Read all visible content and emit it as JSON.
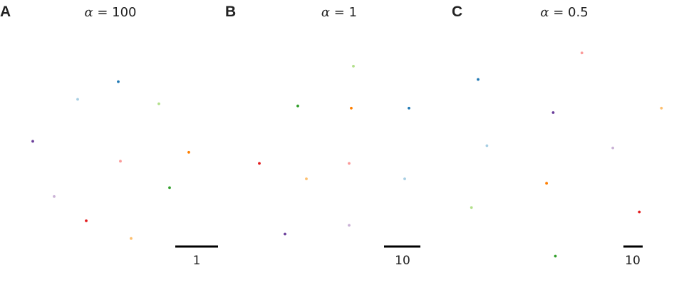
{
  "figure": {
    "background": "#ffffff"
  },
  "chart_data": [
    {
      "type": "scatter",
      "panel_letter": "A",
      "title_symbol": "α",
      "title_value": " = 100",
      "scale_bar_label": "1",
      "xlim": [
        0,
        100
      ],
      "ylim": [
        0,
        100
      ],
      "series": [
        {
          "color": "#a6cee3",
          "x": [
            33
          ],
          "y": [
            76
          ]
        },
        {
          "color": "#1f78b4",
          "x": [
            52
          ],
          "y": [
            84
          ]
        },
        {
          "color": "#b2df8a",
          "x": [
            71
          ],
          "y": [
            74
          ]
        },
        {
          "color": "#33a02c",
          "x": [
            76
          ],
          "y": [
            36
          ]
        },
        {
          "color": "#fb9a99",
          "x": [
            53
          ],
          "y": [
            48
          ]
        },
        {
          "color": "#e31a1c",
          "x": [
            37
          ],
          "y": [
            21
          ]
        },
        {
          "color": "#fdbf6f",
          "x": [
            58
          ],
          "y": [
            13
          ]
        },
        {
          "color": "#ff7f00",
          "x": [
            85
          ],
          "y": [
            52
          ]
        },
        {
          "color": "#cab2d6",
          "x": [
            22
          ],
          "y": [
            32
          ]
        },
        {
          "color": "#6a3d9a",
          "x": [
            12
          ],
          "y": [
            57
          ]
        }
      ]
    },
    {
      "type": "scatter",
      "panel_letter": "B",
      "title_symbol": "α",
      "title_value": " = 1",
      "scale_bar_label": "10",
      "xlim": [
        0,
        100
      ],
      "ylim": [
        0,
        100
      ],
      "series": [
        {
          "color": "#b2df8a",
          "x": [
            57
          ],
          "y": [
            91
          ]
        },
        {
          "color": "#33a02c",
          "x": [
            31
          ],
          "y": [
            73
          ]
        },
        {
          "color": "#ff7f00",
          "x": [
            56
          ],
          "y": [
            72
          ]
        },
        {
          "color": "#1f78b4",
          "x": [
            83
          ],
          "y": [
            72
          ]
        },
        {
          "color": "#e31a1c",
          "x": [
            13
          ],
          "y": [
            47
          ]
        },
        {
          "color": "#fdbf6f",
          "x": [
            35
          ],
          "y": [
            40
          ]
        },
        {
          "color": "#fb9a99",
          "x": [
            55
          ],
          "y": [
            47
          ]
        },
        {
          "color": "#a6cee3",
          "x": [
            81
          ],
          "y": [
            40
          ]
        },
        {
          "color": "#6a3d9a",
          "x": [
            25
          ],
          "y": [
            15
          ]
        },
        {
          "color": "#cab2d6",
          "x": [
            55
          ],
          "y": [
            19
          ]
        }
      ]
    },
    {
      "type": "scatter",
      "panel_letter": "C",
      "title_symbol": "α",
      "title_value": " = 0.5",
      "scale_bar_label": "10",
      "xlim": [
        0,
        100
      ],
      "ylim": [
        0,
        100
      ],
      "series": [
        {
          "color": "#1f78b4",
          "x": [
            10
          ],
          "y": [
            85
          ]
        },
        {
          "color": "#fb9a99",
          "x": [
            57
          ],
          "y": [
            97
          ]
        },
        {
          "color": "#6a3d9a",
          "x": [
            44
          ],
          "y": [
            70
          ]
        },
        {
          "color": "#fdbf6f",
          "x": [
            93
          ],
          "y": [
            72
          ]
        },
        {
          "color": "#a6cee3",
          "x": [
            14
          ],
          "y": [
            55
          ]
        },
        {
          "color": "#cab2d6",
          "x": [
            71
          ],
          "y": [
            54
          ]
        },
        {
          "color": "#ff7f00",
          "x": [
            41
          ],
          "y": [
            38
          ]
        },
        {
          "color": "#e31a1c",
          "x": [
            83
          ],
          "y": [
            25
          ]
        },
        {
          "color": "#b2df8a",
          "x": [
            7
          ],
          "y": [
            27
          ]
        },
        {
          "color": "#33a02c",
          "x": [
            45
          ],
          "y": [
            5
          ]
        }
      ]
    }
  ]
}
